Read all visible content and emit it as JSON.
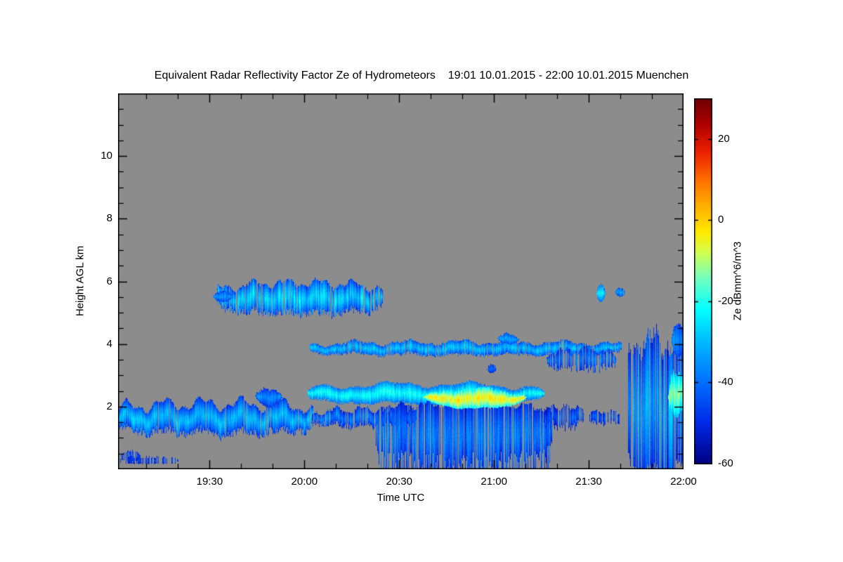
{
  "chart_data": {
    "type": "heatmap",
    "title": "Equivalent Radar Reflectivity Factor Ze of Hydrometeors    19:01 10.01.2015 - 22:00 10.01.2015 Muenchen",
    "xlabel": "Time UTC",
    "ylabel": "Height AGL km",
    "background_color": "#8c8c8c",
    "axis_color": "#000000",
    "x_range": {
      "start": "19:01",
      "end": "22:00",
      "start_hour": 19.0167,
      "end_hour": 22.0
    },
    "y_range_km": [
      0,
      12
    ],
    "x_ticks": [
      {
        "label": "19:30",
        "hour": 19.5
      },
      {
        "label": "20:00",
        "hour": 20.0
      },
      {
        "label": "20:30",
        "hour": 20.5
      },
      {
        "label": "21:00",
        "hour": 21.0
      },
      {
        "label": "21:30",
        "hour": 21.5
      },
      {
        "label": "22:00",
        "hour": 22.0
      }
    ],
    "y_ticks": [
      2,
      4,
      6,
      8,
      10
    ],
    "colorbar": {
      "label": "Ze dBmm^6/m^3",
      "range": [
        -60,
        30
      ],
      "ticks": [
        20,
        0,
        -20,
        -40,
        -60
      ],
      "colormap": [
        [
          -60,
          "#000082"
        ],
        [
          -50,
          "#0028e6"
        ],
        [
          -40,
          "#006eff"
        ],
        [
          -30,
          "#00b9ff"
        ],
        [
          -22,
          "#00ffff"
        ],
        [
          -14,
          "#78ffbe"
        ],
        [
          -8,
          "#d2ff50"
        ],
        [
          -3,
          "#ffeb00"
        ],
        [
          3,
          "#ffb400"
        ],
        [
          10,
          "#ff6e00"
        ],
        [
          17,
          "#eb1e00"
        ],
        [
          24,
          "#aa0000"
        ],
        [
          30,
          "#6e0000"
        ]
      ]
    },
    "clouds": [
      {
        "name": "low-layer-left",
        "t0": 19.017,
        "t1": 20.04,
        "base": 1.3,
        "top": 2.1,
        "amp": 0.18,
        "freq": 5,
        "core": -30,
        "edge": -48,
        "gap": 0.04,
        "streak": 5,
        "baseJitter": 0.25,
        "taper": 0.15
      },
      {
        "name": "low-layer-bump",
        "t0": 19.74,
        "t1": 19.88,
        "base": 2.0,
        "top": 2.62,
        "amp": 0.05,
        "freq": 1,
        "core": -36,
        "edge": -48,
        "gap": 0,
        "streak": 4,
        "taper": 0.8
      },
      {
        "name": "low-thin-mid",
        "t0": 20.04,
        "t1": 20.62,
        "base": 1.5,
        "top": 1.92,
        "amp": 0.1,
        "freq": 4,
        "core": -38,
        "edge": -50,
        "gap": 0.18,
        "streak": 6,
        "baseJitter": 0.2,
        "taper": 0.3
      },
      {
        "name": "main-layer",
        "t0": 20.02,
        "t1": 21.26,
        "base": 2.15,
        "top": 2.72,
        "amp": 0.08,
        "freq": 3,
        "core": -22,
        "edge": -40,
        "gap": 0,
        "streak": 4,
        "baseJitter": 0.1,
        "taper": 0.25
      },
      {
        "name": "virga-fall-streaks",
        "t0": 20.38,
        "t1": 21.3,
        "base": 0.55,
        "top": 2.1,
        "amp": 0.1,
        "freq": 7,
        "core": -38,
        "edge": -50,
        "gap": 0.22,
        "streak": 7,
        "baseJitter": 1.0,
        "taper": 0.1
      },
      {
        "name": "strong-core",
        "t0": 20.63,
        "t1": 21.17,
        "base": 1.95,
        "top": 2.58,
        "amp": 0.05,
        "freq": 2,
        "core": -4,
        "edge": -22,
        "gap": 0,
        "streak": 5,
        "taper": 0.6
      },
      {
        "name": "ragged-low-right",
        "t0": 21.26,
        "t1": 21.47,
        "base": 1.5,
        "top": 2.0,
        "amp": 0.08,
        "freq": 3,
        "core": -42,
        "edge": -52,
        "gap": 0.3,
        "streak": 6,
        "baseJitter": 0.3,
        "taper": 0.3
      },
      {
        "name": "low-specks-right",
        "t0": 21.5,
        "t1": 21.68,
        "base": 1.55,
        "top": 1.85,
        "amp": 0.05,
        "freq": 2,
        "core": -44,
        "edge": -52,
        "gap": 0.4,
        "streak": 5,
        "baseJitter": 0.15,
        "taper": 0.3
      },
      {
        "name": "mid-layer-4km",
        "t0": 20.03,
        "t1": 21.67,
        "base": 3.72,
        "top": 4.06,
        "amp": 0.07,
        "freq": 6,
        "core": -30,
        "edge": -44,
        "gap": 0.07,
        "streak": 5,
        "baseJitter": 0.1,
        "taper": 0.15
      },
      {
        "name": "mid-layer-bump",
        "t0": 21.02,
        "t1": 21.13,
        "base": 4.0,
        "top": 4.34,
        "amp": 0.03,
        "freq": 1,
        "core": -34,
        "edge": -46,
        "taper": 0.7
      },
      {
        "name": "mid-underhang",
        "t0": 21.28,
        "t1": 21.64,
        "base": 3.35,
        "top": 3.85,
        "amp": 0.06,
        "freq": 3,
        "core": -40,
        "edge": -50,
        "gap": 0.3,
        "streak": 6,
        "baseJitter": 0.3,
        "taper": 0.4
      },
      {
        "name": "mid-speck",
        "t0": 20.96,
        "t1": 21.01,
        "base": 3.08,
        "top": 3.35,
        "core": -42,
        "edge": -50,
        "gap": 0.2,
        "taper": 0.6
      },
      {
        "name": "upper-cloud",
        "t0": 19.54,
        "t1": 20.41,
        "base": 5.12,
        "top": 5.95,
        "amp": 0.12,
        "freq": 5,
        "core": -28,
        "edge": -45,
        "gap": 0.1,
        "streak": 8,
        "baseJitter": 0.25,
        "topJitter": 0.1,
        "taper": 0.2
      },
      {
        "name": "upper-cloud-tail",
        "t0": 19.52,
        "t1": 19.62,
        "base": 5.35,
        "top": 5.7,
        "core": -36,
        "edge": -48,
        "taper": 0.5
      },
      {
        "name": "upper-blob-1",
        "t0": 21.54,
        "t1": 21.585,
        "base": 5.35,
        "top": 5.92,
        "core": -24,
        "edge": -40,
        "streak": 4,
        "taper": 0.6
      },
      {
        "name": "upper-blob-2",
        "t0": 21.64,
        "t1": 21.69,
        "base": 5.52,
        "top": 5.82,
        "core": -34,
        "edge": -46,
        "gap": 0.15,
        "taper": 0.6
      },
      {
        "name": "right-system",
        "t0": 21.71,
        "t1": 22.0,
        "base": 0.08,
        "top": 4.1,
        "amp": 0.3,
        "freq": 2,
        "core": -34,
        "edge": -48,
        "gap": 0.13,
        "streak": 9,
        "baseJitter": 0.25,
        "topJitter": 0.5,
        "taper": 0.05
      },
      {
        "name": "right-bright-core",
        "t0": 21.92,
        "t1": 22.0,
        "base": 1.7,
        "top": 3.1,
        "amp": 0.1,
        "freq": 2,
        "core": -12,
        "edge": -28,
        "streak": 6,
        "taper": 0.3
      },
      {
        "name": "right-top-cyan",
        "t0": 21.94,
        "t1": 22.0,
        "base": 3.6,
        "top": 4.65,
        "core": -36,
        "edge": -46,
        "streak": 6,
        "gap": 0.1,
        "taper": 0.3
      },
      {
        "name": "specks-bottom-left",
        "t0": 19.03,
        "t1": 19.13,
        "base": 0.25,
        "top": 0.6,
        "core": -45,
        "edge": -52,
        "gap": 0.45,
        "taper": 0.3
      },
      {
        "name": "dash-bottom-left",
        "t0": 19.02,
        "t1": 19.33,
        "base": 0.18,
        "top": 0.4,
        "core": -46,
        "edge": -52,
        "gap": 0.5,
        "streak": 4,
        "taper": 0.2
      }
    ]
  }
}
